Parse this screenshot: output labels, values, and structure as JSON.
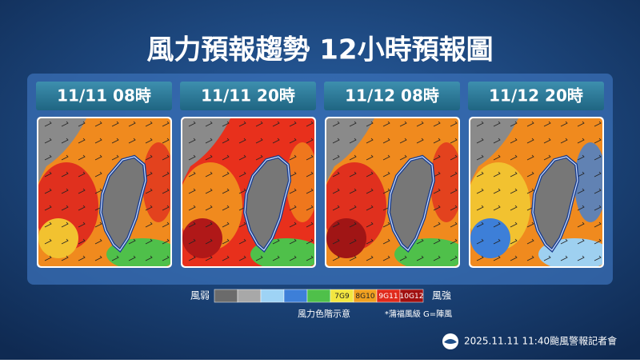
{
  "header": {
    "title": "風力預報趨勢  12小時預報圖"
  },
  "panels": [
    {
      "label": "11/11 08時"
    },
    {
      "label": "11/11 20時"
    },
    {
      "label": "11/12 08時"
    },
    {
      "label": "11/12 20時"
    }
  ],
  "legend": {
    "weak": "風弱",
    "strong": "風強",
    "levels": [
      "7G9",
      "8G10",
      "9G11",
      "10G12"
    ],
    "caption": "風力色階示意",
    "note": "*蒲福風級 G=陣風"
  },
  "footer": {
    "text": "2025.11.11  11:40颱風警報記者會"
  }
}
